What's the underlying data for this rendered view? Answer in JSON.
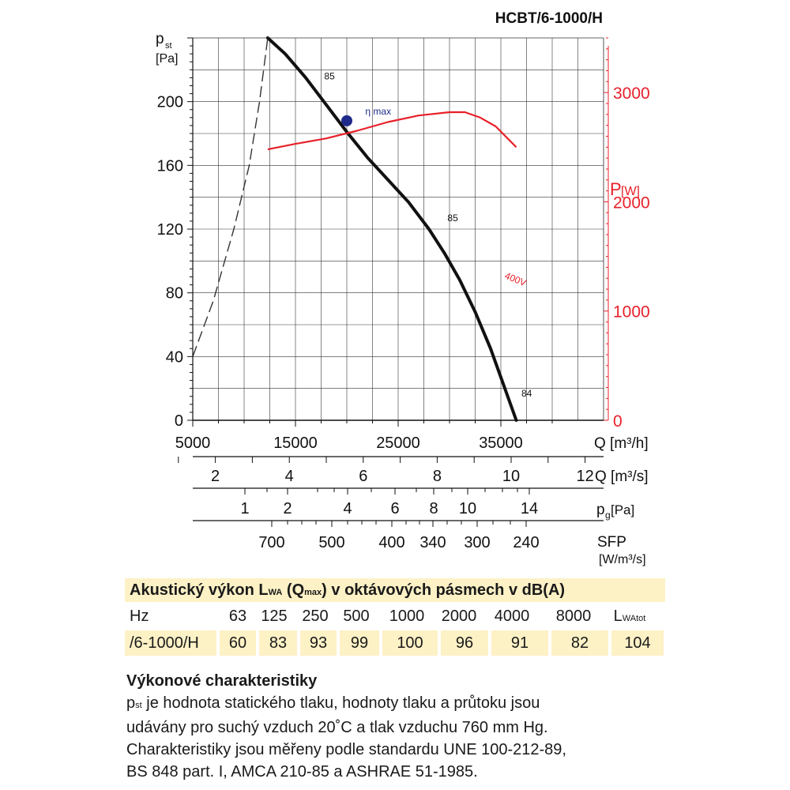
{
  "chart_data": {
    "type": "line",
    "title": "HCBT/6-1000/H",
    "y_axis": {
      "label": "p",
      "label_sub": "st",
      "unit": "[Pa]",
      "ticks": [
        0,
        40,
        80,
        120,
        160,
        200
      ],
      "ylim": [
        0,
        240
      ]
    },
    "y2_axis": {
      "label": "P",
      "unit": "[W]",
      "ticks": [
        0,
        1000,
        2000,
        3000
      ],
      "ylim": [
        0,
        3500
      ],
      "color": "#e8202a"
    },
    "x_axis": {
      "label": "Q [m³/h]",
      "ticks": [
        5000,
        15000,
        25000,
        35000
      ],
      "xlim": [
        5000,
        45000
      ]
    },
    "x2_axis": {
      "label": "Q [m³/s]",
      "ticks": [
        "2",
        "4",
        "6",
        "8",
        "10",
        "12"
      ]
    },
    "pg_axis": {
      "label": "p",
      "label_sub": "g",
      "unit": "[Pa]",
      "ticks": [
        "1",
        "2",
        "4",
        "6",
        "8",
        "10",
        "14"
      ]
    },
    "sfp_axis": {
      "label": "SFP",
      "unit": "[W/m³/s]",
      "ticks": [
        "700",
        "500",
        "400",
        "340",
        "300",
        "240"
      ]
    },
    "series": [
      {
        "name": "",
        "kind": "pressure",
        "color": "#111111",
        "x": [
          12300,
          14000,
          16000,
          18000,
          20000,
          22000,
          24000,
          26000,
          28000,
          29500,
          31000,
          32500,
          34000,
          35500,
          36500
        ],
        "y": [
          240,
          230,
          215,
          198,
          181,
          165,
          151,
          137,
          120,
          105,
          88,
          68,
          45,
          18,
          0
        ]
      },
      {
        "name": "400V",
        "kind": "power",
        "color": "#e8202a",
        "x": [
          12300,
          15000,
          18000,
          21000,
          24000,
          27000,
          30000,
          31500,
          33000,
          34500,
          36500
        ],
        "y": [
          2480,
          2530,
          2580,
          2650,
          2730,
          2790,
          2820,
          2820,
          2770,
          2690,
          2500
        ]
      },
      {
        "name": "",
        "kind": "system-limit",
        "color": "#333333",
        "x": [
          5000,
          7000,
          9000,
          10500,
          11500,
          12300
        ],
        "y": [
          40,
          75,
          120,
          160,
          200,
          240
        ]
      }
    ],
    "annotations": [
      {
        "text": "85",
        "x": 17800,
        "y": 214
      },
      {
        "text": "85",
        "x": 29800,
        "y": 125
      },
      {
        "text": "84",
        "x": 37000,
        "y": 15
      },
      {
        "text": "η max",
        "x": 21800,
        "y": 192
      }
    ],
    "points": [
      {
        "name": "η max",
        "x": 20000,
        "y": 188,
        "color": "#1f2a8a"
      }
    ]
  },
  "table": {
    "title_parts": {
      "t1": "Akustický výkon L",
      "s1": "WA",
      "t2": " (Q",
      "s2": "max",
      "t3": ") v oktávových pásmech v dB(A)"
    },
    "header": [
      "Hz",
      "63",
      "125",
      "250",
      "500",
      "1000",
      "2000",
      "4000",
      "8000"
    ],
    "total_label": {
      "main": "L",
      "sub": "WAtot"
    },
    "row_label": "/6-1000/H",
    "values": [
      "60",
      "83",
      "93",
      "99",
      "100",
      "96",
      "91",
      "82",
      "104"
    ]
  },
  "description": {
    "heading": "Výkonové charakteristiky",
    "p_main": "p",
    "p_sub": "st",
    "line1": " je hodnota statického tlaku, hodnoty tlaku a průtoku jsou",
    "line2": "udávány pro suchý vzduch 20˚C a tlak vzduchu 760 mm Hg.",
    "line3": "Charakteristiky jsou měřeny podle standardu UNE 100-212-89,",
    "line4": "BS 848 part. I, AMCA 210-85 a ASHRAE 51-1985."
  }
}
